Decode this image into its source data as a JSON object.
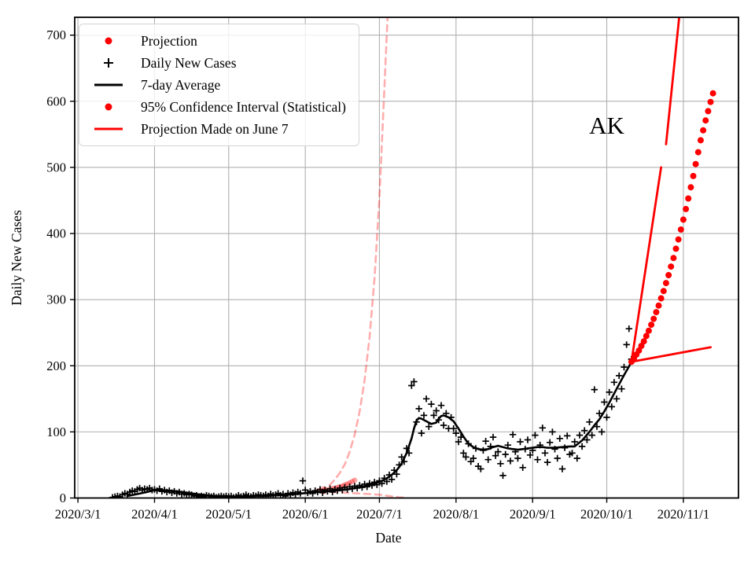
{
  "figure": {
    "kind": "time-series chart of daily COVID-19 cases with projections"
  },
  "legend": {
    "items": [
      {
        "label": "Projection",
        "swatch": "dot",
        "color": "#ff0000"
      },
      {
        "label": "Daily New Cases",
        "swatch": "plus",
        "color": "#000000"
      },
      {
        "label": "7-day Average",
        "swatch": "line",
        "color": "#000000"
      },
      {
        "label": "95% Confidence Interval (Statistical)",
        "swatch": "dot",
        "color": "#ff0000"
      },
      {
        "label": "Projection Made on June 7",
        "swatch": "line",
        "color": "#ff0000"
      }
    ]
  },
  "chart_data": {
    "type": "mixed-scatter-line",
    "title": "",
    "xlabel": "Date",
    "ylabel": "Daily New Cases",
    "x_unit": "days since 2020/3/1",
    "xlim": [
      -1.3,
      267.3
    ],
    "ylim": [
      0,
      727
    ],
    "grid": true,
    "grid_color": "#b0b0b0",
    "x_ticks": [
      {
        "day": 0,
        "label": "2020/3/1"
      },
      {
        "day": 31,
        "label": "2020/4/1"
      },
      {
        "day": 61,
        "label": "2020/5/1"
      },
      {
        "day": 92,
        "label": "2020/6/1"
      },
      {
        "day": 122,
        "label": "2020/7/1"
      },
      {
        "day": 153,
        "label": "2020/8/1"
      },
      {
        "day": 184,
        "label": "2020/9/1"
      },
      {
        "day": 214,
        "label": "2020/10/1"
      },
      {
        "day": 245,
        "label": "2020/11/1"
      }
    ],
    "y_ticks": [
      0,
      100,
      200,
      300,
      400,
      500,
      600,
      700
    ],
    "annotation": {
      "text": "AK",
      "day": 214,
      "value": 563
    },
    "series": [
      {
        "name": "June 7 projection 95% CI upper (faded)",
        "style": "dashed",
        "color": "rgba(255,0,0,0.32)",
        "width": 2.6,
        "points": [
          [
            98,
            11
          ],
          [
            100,
            15
          ],
          [
            102,
            20
          ],
          [
            104,
            28
          ],
          [
            106,
            38
          ],
          [
            108,
            51
          ],
          [
            110,
            70
          ],
          [
            112,
            96
          ],
          [
            114,
            131
          ],
          [
            116,
            178
          ],
          [
            118,
            243
          ],
          [
            120,
            332
          ],
          [
            122,
            453
          ],
          [
            124,
            618
          ],
          [
            125.3,
            727
          ]
        ]
      },
      {
        "name": "June 7 projection 95% CI lower (faded)",
        "style": "dashed",
        "color": "rgba(255,0,0,0.32)",
        "width": 2.6,
        "points": [
          [
            98,
            10
          ],
          [
            103,
            9
          ],
          [
            108,
            8
          ],
          [
            113,
            7
          ],
          [
            118,
            6
          ],
          [
            122,
            5
          ],
          [
            126,
            3
          ],
          [
            130,
            1
          ],
          [
            133,
            0.5
          ]
        ]
      },
      {
        "name": "June 7 projection dots (faded)",
        "style": "dots",
        "color": "rgba(255,0,0,0.35)",
        "r": 3.4,
        "start_day": 99,
        "values": [
          10,
          11,
          12,
          13,
          14,
          15,
          16,
          17,
          18,
          20,
          21,
          23,
          25,
          27
        ],
        "arrow": {
          "day": 98,
          "value": 12
        }
      },
      {
        "name": "Daily New Cases",
        "style": "plus",
        "color": "#000000",
        "width": 1.7,
        "arm": 4.2,
        "start_day": 14,
        "values": [
          1,
          2,
          3,
          2,
          5,
          7,
          6,
          9,
          11,
          10,
          13,
          15,
          12,
          14,
          13,
          15,
          12,
          13,
          11,
          14,
          10,
          12,
          9,
          11,
          8,
          10,
          7,
          9,
          6,
          7,
          5,
          6,
          5,
          3,
          4,
          2,
          3,
          2,
          4,
          3,
          2,
          3,
          1,
          2,
          3,
          2,
          3,
          2,
          3,
          1,
          2,
          4,
          2,
          3,
          5,
          3,
          2,
          4,
          3,
          5,
          4,
          3,
          5,
          3,
          6,
          4,
          5,
          7,
          4,
          6,
          3,
          7,
          5,
          8,
          6,
          9,
          7,
          26,
          12,
          8,
          10,
          7,
          11,
          9,
          13,
          8,
          12,
          10,
          14,
          9,
          13,
          11,
          15,
          12,
          16,
          13,
          17,
          14,
          18,
          15,
          19,
          16,
          21,
          17,
          22,
          19,
          24,
          20,
          26,
          22,
          30,
          25,
          35,
          28,
          42,
          36,
          50,
          62,
          55,
          75,
          68,
          170,
          176,
          115,
          135,
          98,
          125,
          150,
          108,
          142,
          125,
          132,
          118,
          140,
          110,
          128,
          105,
          122,
          105,
          98,
          85,
          92,
          68,
          62,
          82,
          55,
          60,
          75,
          48,
          44,
          72,
          86,
          58,
          78,
          92,
          64,
          70,
          52,
          34,
          66,
          80,
          56,
          96,
          70,
          60,
          85,
          46,
          74,
          88,
          65,
          72,
          95,
          58,
          80,
          106,
          68,
          54,
          84,
          100,
          74,
          60,
          90,
          44,
          76,
          94,
          66,
          68,
          85,
          60,
          95,
          78,
          102,
          88,
          115,
          95,
          164,
          108,
          128,
          100,
          145,
          122,
          160,
          138,
          175,
          150,
          185,
          165,
          198,
          232,
          256,
          210
        ]
      },
      {
        "name": "7-day Average",
        "style": "line",
        "color": "#000000",
        "width": 2.6,
        "points": [
          [
            20,
            3
          ],
          [
            24,
            6
          ],
          [
            28,
            9
          ],
          [
            31,
            12
          ],
          [
            34,
            12
          ],
          [
            37,
            11
          ],
          [
            40,
            10
          ],
          [
            44,
            8
          ],
          [
            48,
            6
          ],
          [
            52,
            4
          ],
          [
            56,
            3
          ],
          [
            60,
            3
          ],
          [
            64,
            2
          ],
          [
            68,
            2
          ],
          [
            72,
            3
          ],
          [
            76,
            3
          ],
          [
            80,
            4
          ],
          [
            84,
            5
          ],
          [
            88,
            6
          ],
          [
            91,
            7
          ],
          [
            94,
            8
          ],
          [
            97,
            9
          ],
          [
            100,
            10
          ],
          [
            103,
            11
          ],
          [
            106,
            12
          ],
          [
            109,
            13
          ],
          [
            112,
            15
          ],
          [
            115,
            17
          ],
          [
            118,
            20
          ],
          [
            121,
            23
          ],
          [
            123,
            26
          ],
          [
            125,
            30
          ],
          [
            127,
            35
          ],
          [
            129,
            42
          ],
          [
            131,
            52
          ],
          [
            133,
            68
          ],
          [
            135,
            90
          ],
          [
            136,
            105
          ],
          [
            137,
            117
          ],
          [
            138,
            121
          ],
          [
            139,
            120
          ],
          [
            141,
            116
          ],
          [
            143,
            112
          ],
          [
            145,
            114
          ],
          [
            146,
            120
          ],
          [
            147,
            124
          ],
          [
            148,
            125
          ],
          [
            150,
            122
          ],
          [
            152,
            116
          ],
          [
            154,
            105
          ],
          [
            156,
            93
          ],
          [
            158,
            82
          ],
          [
            160,
            77
          ],
          [
            162,
            74
          ],
          [
            164,
            73
          ],
          [
            166,
            74
          ],
          [
            168,
            77
          ],
          [
            170,
            79
          ],
          [
            172,
            77
          ],
          [
            174,
            75
          ],
          [
            176,
            74
          ],
          [
            178,
            73
          ],
          [
            180,
            74
          ],
          [
            182,
            75
          ],
          [
            184,
            76
          ],
          [
            186,
            77
          ],
          [
            188,
            77
          ],
          [
            190,
            76
          ],
          [
            193,
            76
          ],
          [
            196,
            77
          ],
          [
            199,
            78
          ],
          [
            201,
            78
          ],
          [
            204,
            87
          ],
          [
            207,
            100
          ],
          [
            209,
            110
          ],
          [
            211,
            119
          ],
          [
            213,
            131
          ],
          [
            215,
            144
          ],
          [
            217,
            158
          ],
          [
            219,
            172
          ],
          [
            221,
            186
          ],
          [
            223,
            199
          ],
          [
            224,
            206
          ]
        ]
      },
      {
        "name": "95% Confidence Interval lower",
        "style": "line",
        "color": "#ff0000",
        "width": 2.8,
        "points": [
          [
            224,
            206
          ],
          [
            256,
            228
          ]
        ]
      },
      {
        "name": "95% Confidence Interval upper",
        "style": "segments",
        "color": "#ff0000",
        "width": 2.8,
        "segments": [
          [
            [
              224,
              206
            ],
            [
              236,
              500
            ]
          ],
          [
            [
              238,
              535
            ],
            [
              243.3,
              727
            ]
          ]
        ]
      },
      {
        "name": "Projection",
        "style": "dots",
        "color": "#ff0000",
        "r": 4,
        "start_day": 224,
        "values": [
          206,
          211,
          217,
          223,
          230,
          237,
          245,
          253,
          262,
          271,
          281,
          291,
          302,
          313,
          325,
          337,
          350,
          363,
          377,
          391,
          406,
          421,
          437,
          453,
          470,
          487,
          505,
          523,
          541,
          556,
          571,
          585,
          599,
          612
        ]
      }
    ]
  }
}
